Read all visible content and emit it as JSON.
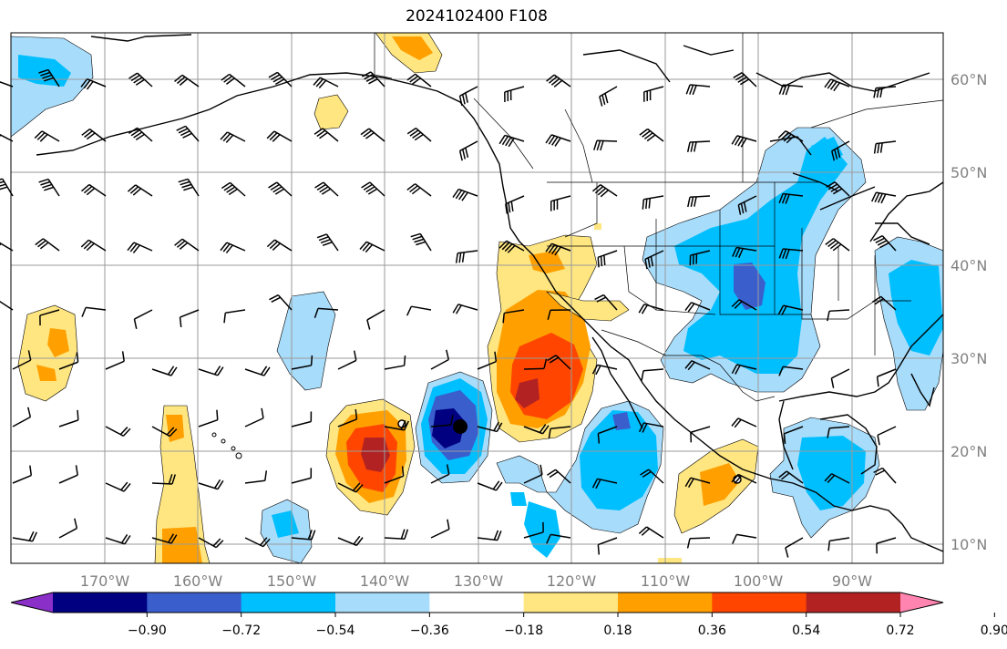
{
  "title": "2024102400 F108",
  "lon_labels": [
    "170°W",
    "160°W",
    "150°W",
    "140°W",
    "130°W",
    "120°W",
    "110°W",
    "100°W",
    "90°W"
  ],
  "lat_labels": [
    "60°N",
    "50°N",
    "40°N",
    "30°N",
    "20°N",
    "10°N"
  ],
  "colorbar": {
    "ticks": [
      "−0.90",
      "−0.72",
      "−0.54",
      "−0.36",
      "−0.18",
      "0.18",
      "0.36",
      "0.54",
      "0.72",
      "0.90"
    ],
    "colors": [
      "#8b2fc9",
      "#000080",
      "#3a5fcd",
      "#00bfff",
      "#a8dcfb",
      "#ffffff",
      "#ffe680",
      "#ffa000",
      "#ff4500",
      "#b22222",
      "#ff85b0"
    ]
  },
  "map_colors": {
    "blue_light": "#a8dcfb",
    "blue_mid": "#00bfff",
    "blue_dark": "#3a5fcd",
    "navy": "#000080",
    "yellow": "#ffe680",
    "orange": "#ffa000",
    "red": "#ff4500",
    "darkred": "#b22222"
  }
}
